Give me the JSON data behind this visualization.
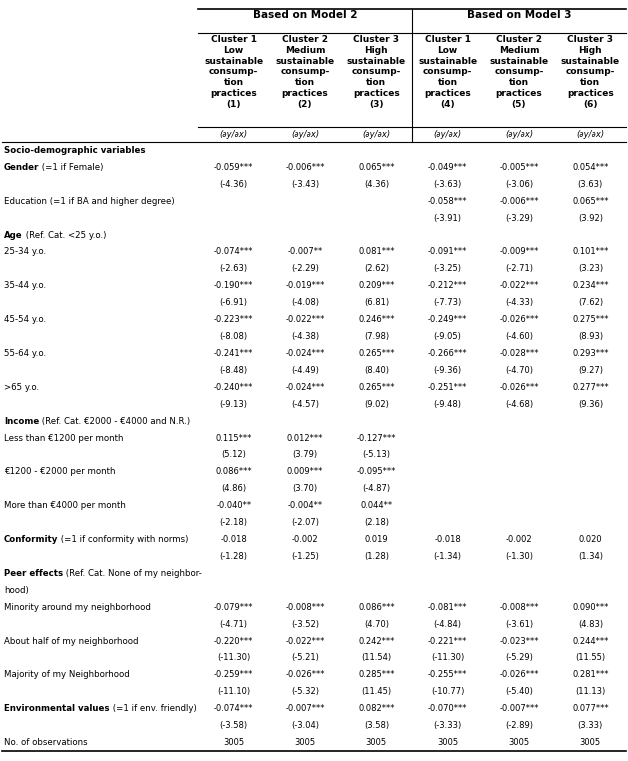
{
  "col_headers_top": [
    "Based on Model 2",
    "Based on Model 3"
  ],
  "col_headers_mid": [
    "Cluster 1\nLow\nsustainable\nconsump-\ntion\npractices\n(1)",
    "Cluster 2\nMedium\nsustainable\nconsump-\ntion\npractices\n(2)",
    "Cluster 3\nHigh\nsustainable\nconsump-\ntion\npractices\n(3)",
    "Cluster 1\nLow\nsustainable\nconsump-\ntion\npractices\n(4)",
    "Cluster 2\nMedium\nsustainable\nconsump-\ntion\npractices\n(5)",
    "Cluster 3\nHigh\nsustainable\nconsump-\ntion\npractices\n(6)"
  ],
  "deriv_row": [
    "(∂y/∂x)",
    "(∂y/∂x)",
    "(∂y/∂x)",
    "(∂y/∂x)",
    "(∂y/∂x)",
    "(∂y/∂x)"
  ],
  "row_labels": [
    [
      "Socio-demographic variables",
      "bold"
    ],
    [
      "Gender (=1 if Female)",
      "mixed_gender"
    ],
    [
      "",
      "normal"
    ],
    [
      "Education (=1 if BA and higher degree)",
      "normal"
    ],
    [
      "",
      "normal"
    ],
    [
      "Age (Ref. Cat. <25 y.o.)",
      "mixed_age"
    ],
    [
      "25-34 y.o.",
      "normal"
    ],
    [
      "",
      "normal"
    ],
    [
      "35-44 y.o.",
      "normal"
    ],
    [
      "",
      "normal"
    ],
    [
      "45-54 y.o.",
      "normal"
    ],
    [
      "",
      "normal"
    ],
    [
      "55-64 y.o.",
      "normal"
    ],
    [
      "",
      "normal"
    ],
    [
      ">65 y.o.",
      "normal"
    ],
    [
      "",
      "normal"
    ],
    [
      "Income (Ref. Cat. €2000 - €4000 and N.R.)",
      "mixed_income"
    ],
    [
      "Less than €1200 per month",
      "normal"
    ],
    [
      "",
      "normal"
    ],
    [
      "€1200 - €2000 per month",
      "normal"
    ],
    [
      "",
      "normal"
    ],
    [
      "More than €4000 per month",
      "normal"
    ],
    [
      "",
      "normal"
    ],
    [
      "Conformity (=1 if conformity with norms)",
      "mixed_conformity"
    ],
    [
      "",
      "normal"
    ],
    [
      "Peer effects (Ref. Cat. None of my neighbor-",
      "mixed_peer"
    ],
    [
      "hood)",
      "normal"
    ],
    [
      "Minority around my neighborhood",
      "normal"
    ],
    [
      "",
      "normal"
    ],
    [
      "About half of my neighborhood",
      "normal"
    ],
    [
      "",
      "normal"
    ],
    [
      "Majority of my Neighborhood",
      "normal"
    ],
    [
      "",
      "normal"
    ],
    [
      "Environmental values (=1 if env. friendly)",
      "mixed_env"
    ],
    [
      "",
      "normal"
    ],
    [
      "No. of observations",
      "normal"
    ]
  ],
  "data": [
    [
      "",
      "",
      "",
      "",
      "",
      ""
    ],
    [
      "-0.059***",
      "-0.006***",
      "0.065***",
      "-0.049***",
      "-0.005***",
      "0.054***"
    ],
    [
      "(-4.36)",
      "(-3.43)",
      "(4.36)",
      "(-3.63)",
      "(-3.06)",
      "(3.63)"
    ],
    [
      "",
      "",
      "",
      "-0.058***",
      "-0.006***",
      "0.065***"
    ],
    [
      "",
      "",
      "",
      "(-3.91)",
      "(-3.29)",
      "(3.92)"
    ],
    [
      "",
      "",
      "",
      "",
      "",
      ""
    ],
    [
      "-0.074***",
      "-0.007**",
      "0.081***",
      "-0.091***",
      "-0.009***",
      "0.101***"
    ],
    [
      "(-2.63)",
      "(-2.29)",
      "(2.62)",
      "(-3.25)",
      "(-2.71)",
      "(3.23)"
    ],
    [
      "-0.190***",
      "-0.019***",
      "0.209***",
      "-0.212***",
      "-0.022***",
      "0.234***"
    ],
    [
      "(-6.91)",
      "(-4.08)",
      "(6.81)",
      "(-7.73)",
      "(-4.33)",
      "(7.62)"
    ],
    [
      "-0.223***",
      "-0.022***",
      "0.246***",
      "-0.249***",
      "-0.026***",
      "0.275***"
    ],
    [
      "(-8.08)",
      "(-4.38)",
      "(7.98)",
      "(-9.05)",
      "(-4.60)",
      "(8.93)"
    ],
    [
      "-0.241***",
      "-0.024***",
      "0.265***",
      "-0.266***",
      "-0.028***",
      "0.293***"
    ],
    [
      "(-8.48)",
      "(-4.49)",
      "(8.40)",
      "(-9.36)",
      "(-4.70)",
      "(9.27)"
    ],
    [
      "-0.240***",
      "-0.024***",
      "0.265***",
      "-0.251***",
      "-0.026***",
      "0.277***"
    ],
    [
      "(-9.13)",
      "(-4.57)",
      "(9.02)",
      "(-9.48)",
      "(-4.68)",
      "(9.36)"
    ],
    [
      "",
      "",
      "",
      "",
      "",
      ""
    ],
    [
      "0.115***",
      "0.012***",
      "-0.127***",
      "",
      "",
      ""
    ],
    [
      "(5.12)",
      "(3.79)",
      "(-5.13)",
      "",
      "",
      ""
    ],
    [
      "0.086***",
      "0.009***",
      "-0.095***",
      "",
      "",
      ""
    ],
    [
      "(4.86)",
      "(3.70)",
      "(-4.87)",
      "",
      "",
      ""
    ],
    [
      "-0.040**",
      "-0.004**",
      "0.044**",
      "",
      "",
      ""
    ],
    [
      "(-2.18)",
      "(-2.07)",
      "(2.18)",
      "",
      "",
      ""
    ],
    [
      "-0.018",
      "-0.002",
      "0.019",
      "-0.018",
      "-0.002",
      "0.020"
    ],
    [
      "(-1.28)",
      "(-1.25)",
      "(1.28)",
      "(-1.34)",
      "(-1.30)",
      "(1.34)"
    ],
    [
      "",
      "",
      "",
      "",
      "",
      ""
    ],
    [
      "",
      "",
      "",
      "",
      "",
      ""
    ],
    [
      "-0.079***",
      "-0.008***",
      "0.086***",
      "-0.081***",
      "-0.008***",
      "0.090***"
    ],
    [
      "(-4.71)",
      "(-3.52)",
      "(4.70)",
      "(-4.84)",
      "(-3.61)",
      "(4.83)"
    ],
    [
      "-0.220***",
      "-0.022***",
      "0.242***",
      "-0.221***",
      "-0.023***",
      "0.244***"
    ],
    [
      "(-11.30)",
      "(-5.21)",
      "(11.54)",
      "(-11.30)",
      "(-5.29)",
      "(11.55)"
    ],
    [
      "-0.259***",
      "-0.026***",
      "0.285***",
      "-0.255***",
      "-0.026***",
      "0.281***"
    ],
    [
      "(-11.10)",
      "(-5.32)",
      "(11.45)",
      "(-10.77)",
      "(-5.40)",
      "(11.13)"
    ],
    [
      "-0.074***",
      "-0.007***",
      "0.082***",
      "-0.070***",
      "-0.007***",
      "0.077***"
    ],
    [
      "(-3.58)",
      "(-3.04)",
      "(3.58)",
      "(-3.33)",
      "(-2.89)",
      "(3.33)"
    ],
    [
      "3005",
      "3005",
      "3005",
      "3005",
      "3005",
      "3005"
    ]
  ],
  "bg_color": "#ffffff"
}
